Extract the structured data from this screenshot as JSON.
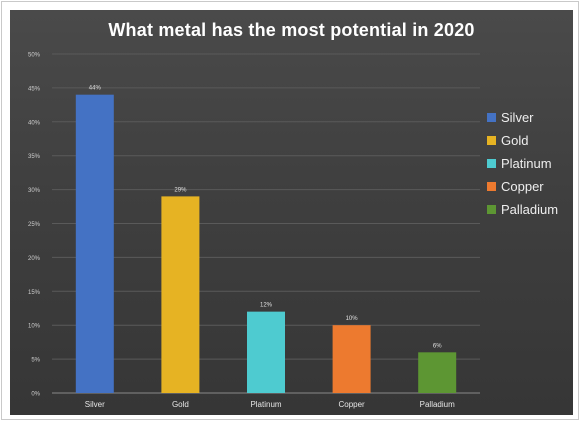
{
  "chart_data": {
    "type": "bar",
    "title": "What metal has the most potential in 2020",
    "categories": [
      "Silver",
      "Gold",
      "Platinum",
      "Copper",
      "Palladium"
    ],
    "values": [
      44,
      29,
      12,
      10,
      6
    ],
    "data_labels": [
      "44%",
      "29%",
      "12%",
      "10%",
      "6%"
    ],
    "colors": [
      "#4472C4",
      "#E6B323",
      "#4ECBD0",
      "#ED7A2F",
      "#5D9633"
    ],
    "ylim": [
      0,
      50
    ],
    "yticks": [
      "0%",
      "5%",
      "10%",
      "15%",
      "20%",
      "25%",
      "30%",
      "35%",
      "40%",
      "45%",
      "50%"
    ],
    "grid": true,
    "legend": {
      "position": "right",
      "items": [
        "Silver",
        "Gold",
        "Platinum",
        "Copper",
        "Palladium"
      ]
    },
    "background_color": "#3f3f3f"
  }
}
